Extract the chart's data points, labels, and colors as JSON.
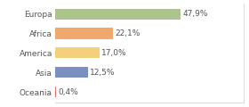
{
  "categories": [
    "Europa",
    "Africa",
    "America",
    "Asia",
    "Oceania"
  ],
  "values": [
    47.9,
    22.1,
    17.0,
    12.5,
    0.4
  ],
  "labels": [
    "47,9%",
    "22,1%",
    "17,0%",
    "12,5%",
    "0,4%"
  ],
  "bar_colors": [
    "#aec48e",
    "#f0a86c",
    "#f5d07a",
    "#7b8fc0",
    "#e87070"
  ],
  "background_color": "#ffffff",
  "xlim": [
    0,
    72
  ],
  "bar_height": 0.55,
  "label_fontsize": 6.5,
  "tick_fontsize": 6.5
}
